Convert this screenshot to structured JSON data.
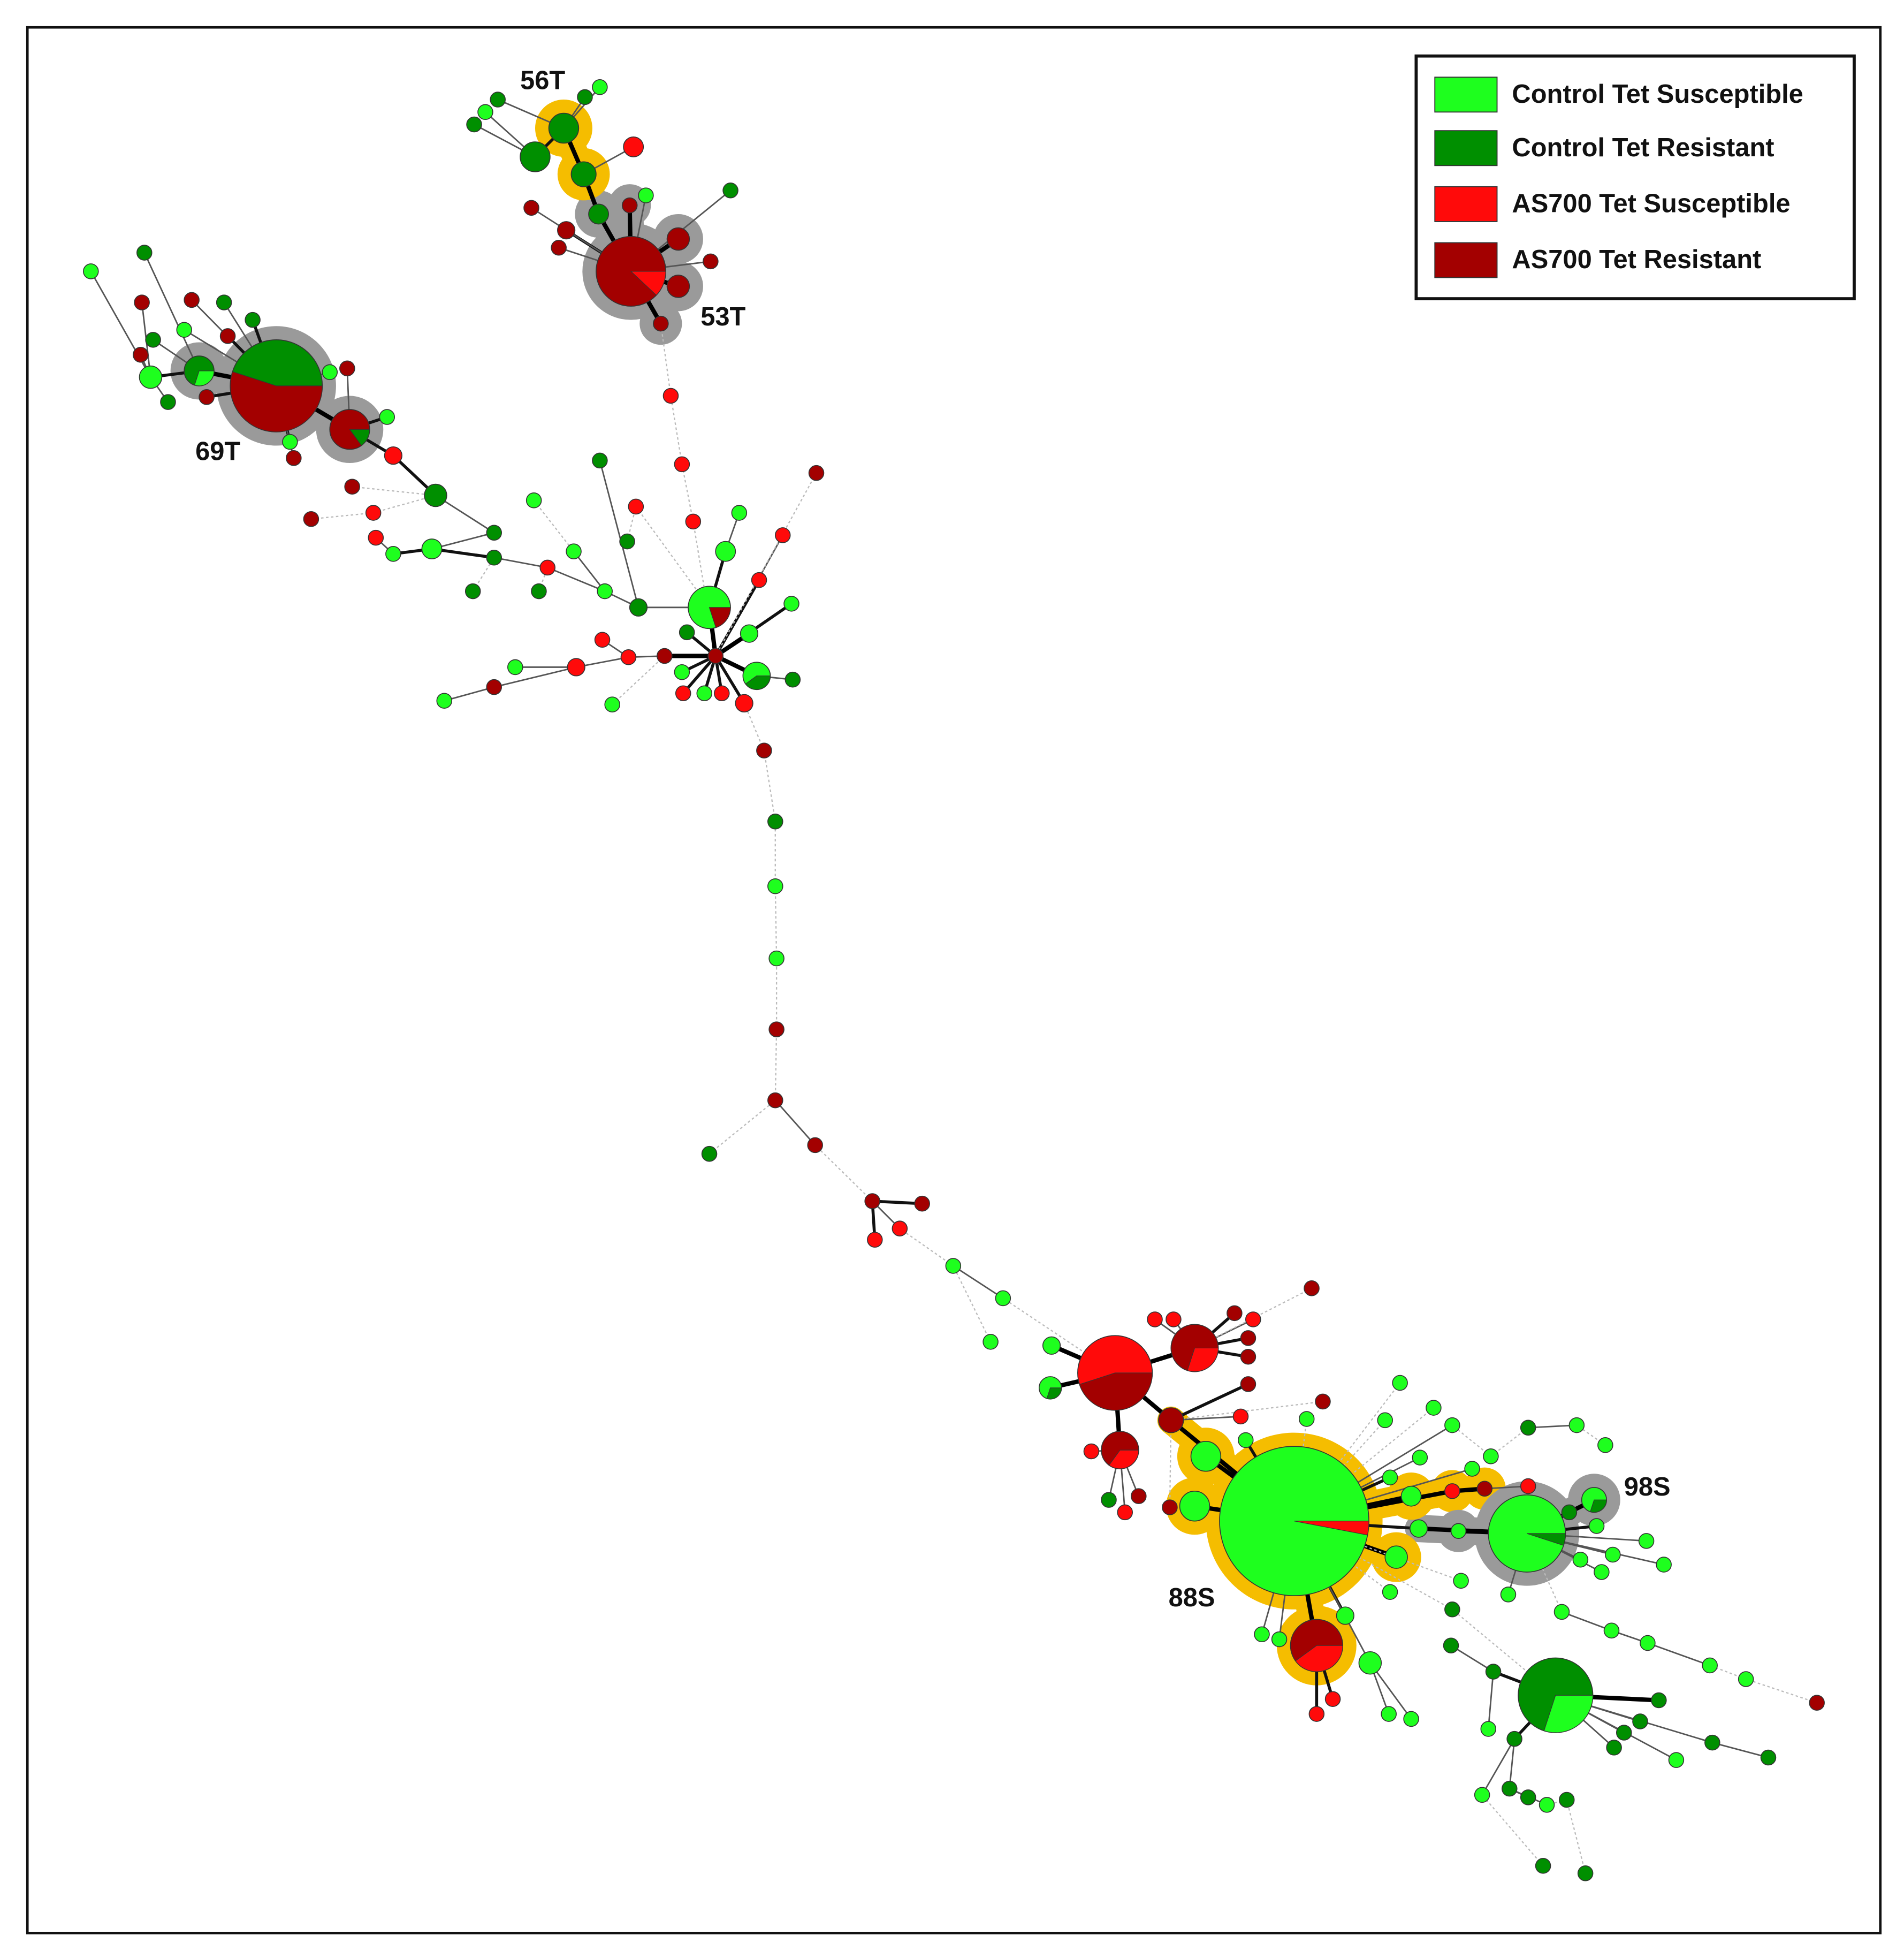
{
  "legend": [
    {
      "label": "Control Tet Susceptible",
      "color": "#1eff1e"
    },
    {
      "label": "Control Tet Resistant",
      "color": "#008f00"
    },
    {
      "label": "AS700 Tet Susceptible",
      "color": "#ff0a0a"
    },
    {
      "label": "AS700 Tet Resistant",
      "color": "#a30000"
    }
  ],
  "clusters": [
    "56T",
    "53T",
    "69T",
    "88S",
    "98S"
  ]
}
